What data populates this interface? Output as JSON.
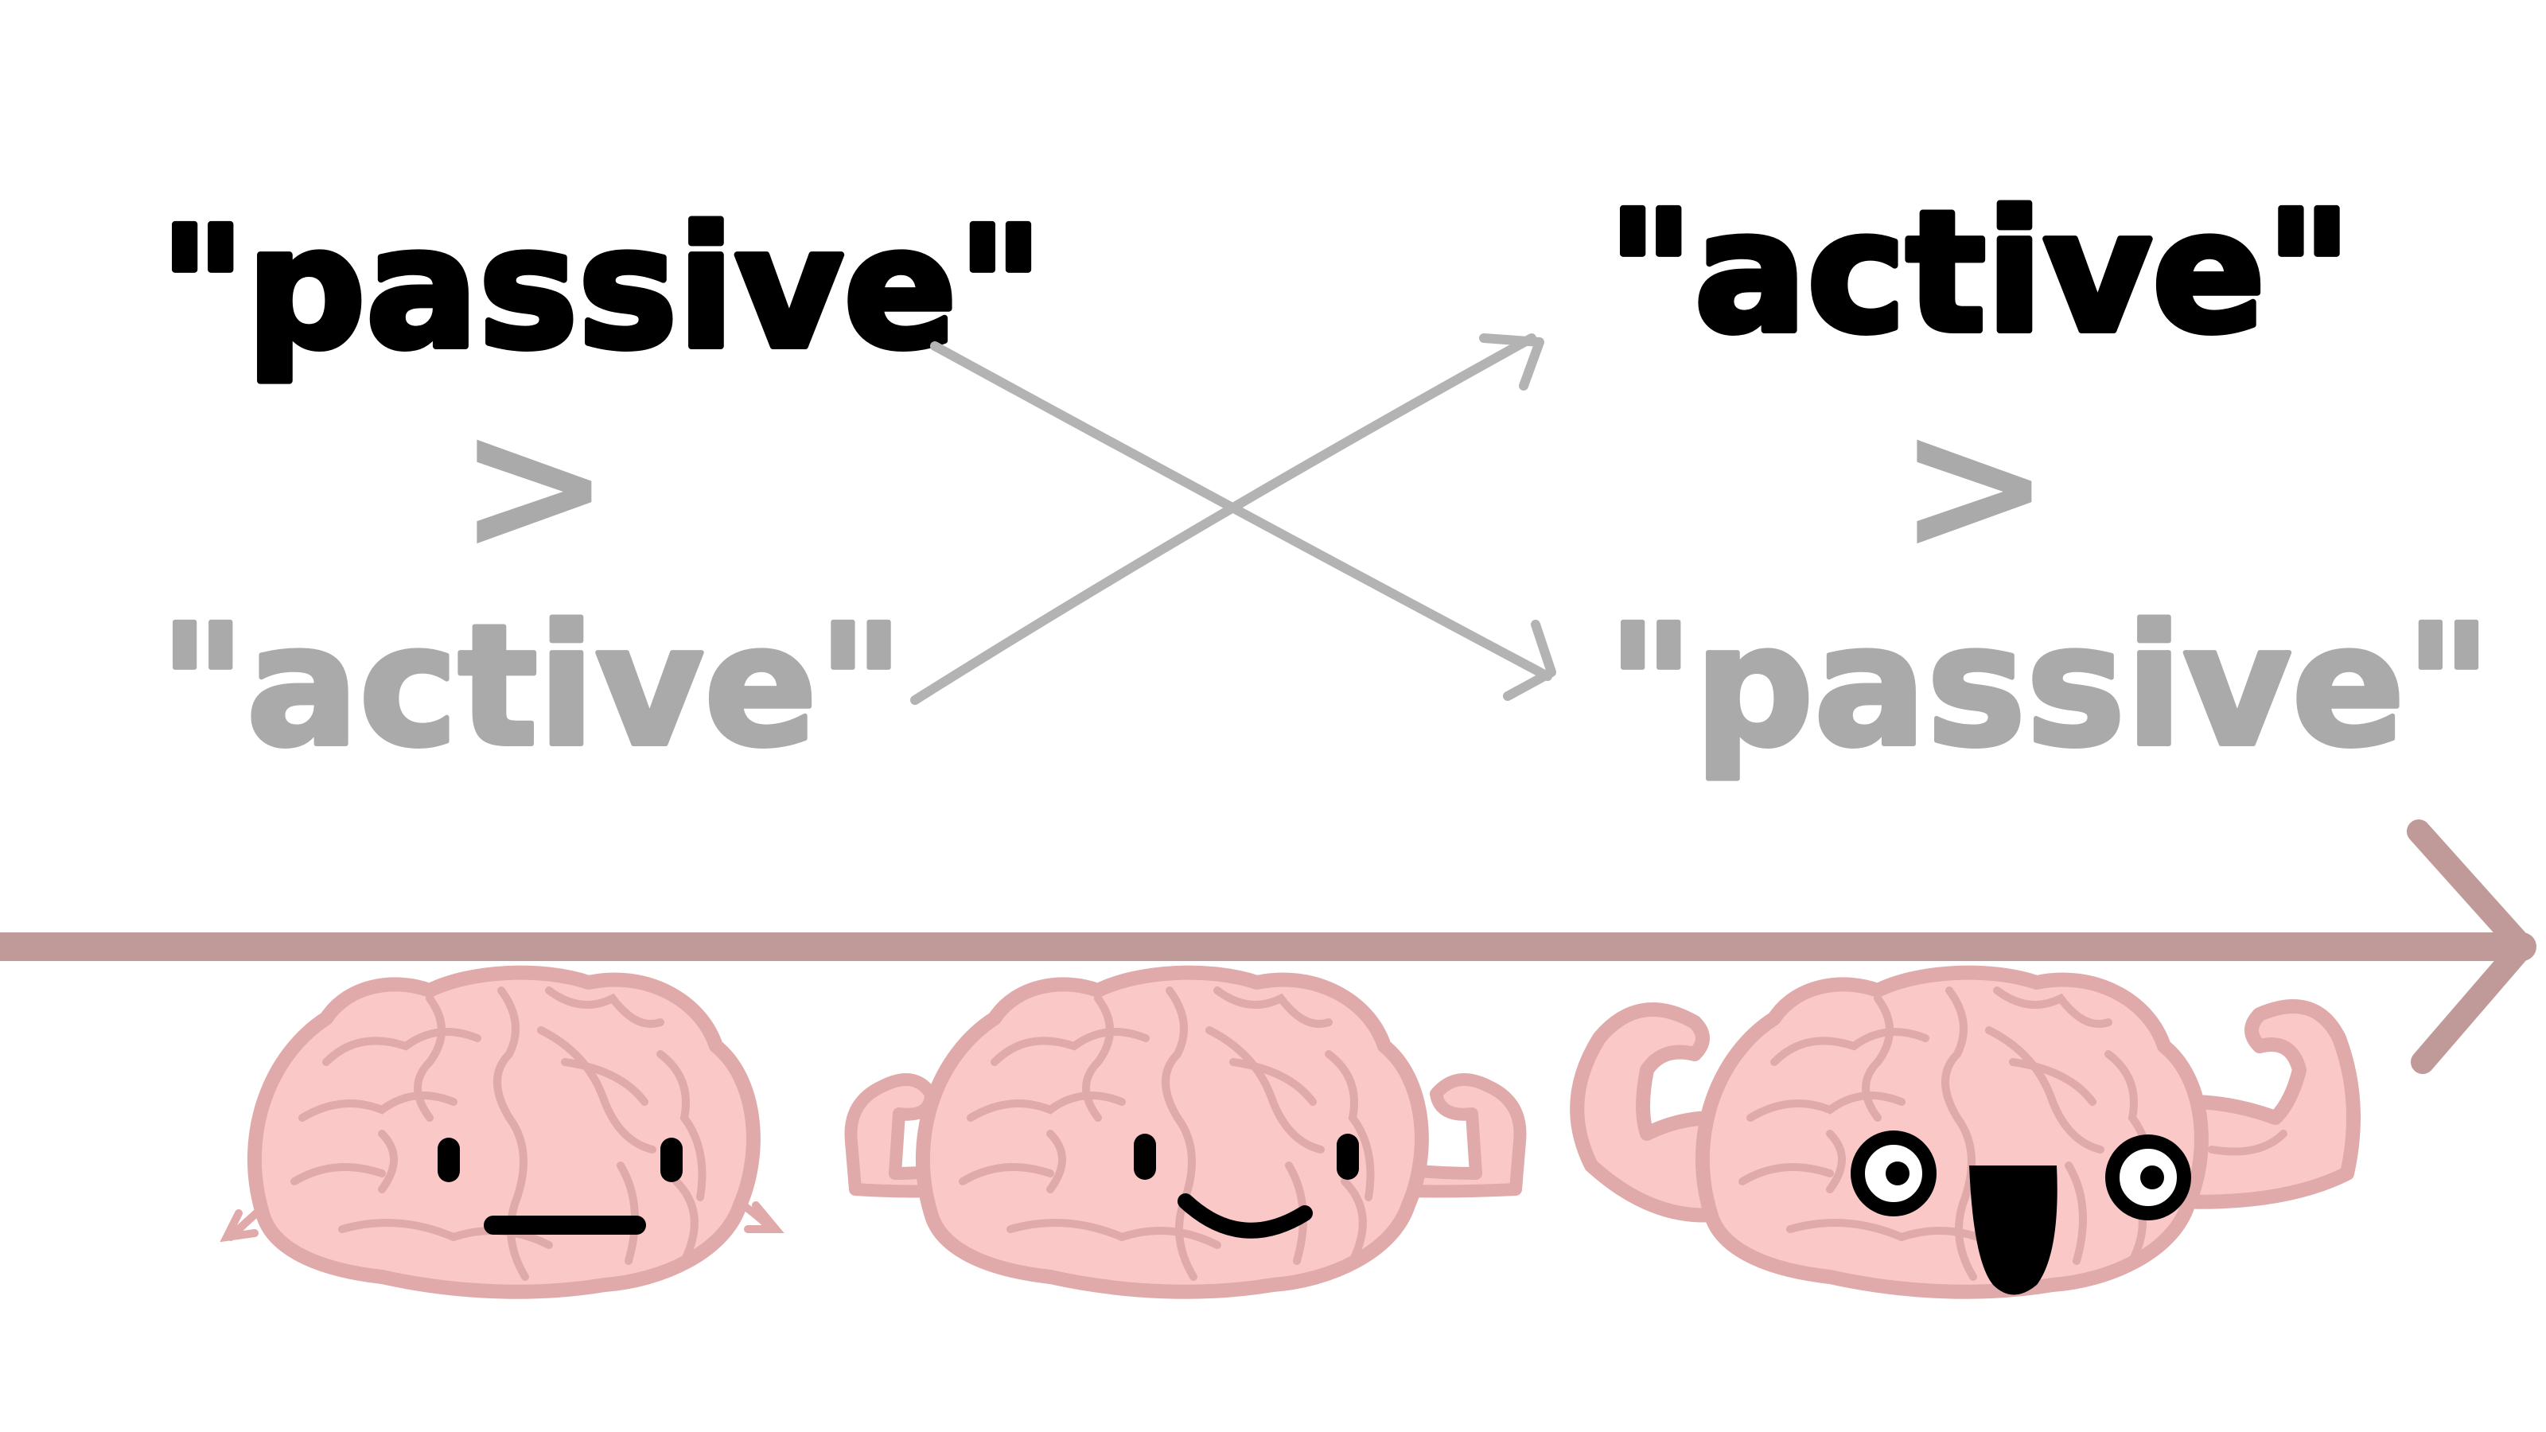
{
  "left_comparison": {
    "top_word": "\"passive\"",
    "operator": ">",
    "bottom_word": "\"active\""
  },
  "right_comparison": {
    "top_word": "\"active\"",
    "operator": ">",
    "bottom_word": "\"passive\""
  },
  "colors": {
    "emphasized_text": "#000000",
    "faded_text": "#aaaaaa",
    "cross_arrows": "#b3b3b3",
    "timeline_arrow": "#bf9a98",
    "brain_fill": "#fbc8c8",
    "brain_outline": "#e0aaaa",
    "brain_wheel": "#c9a3a3"
  },
  "brains": [
    {
      "name": "neutral-brain",
      "expression": "neutral",
      "arms": "none"
    },
    {
      "name": "smiling-brain",
      "expression": "smile",
      "arms": "small"
    },
    {
      "name": "shocked-muscular-brain",
      "expression": "shocked",
      "arms": "large"
    }
  ]
}
